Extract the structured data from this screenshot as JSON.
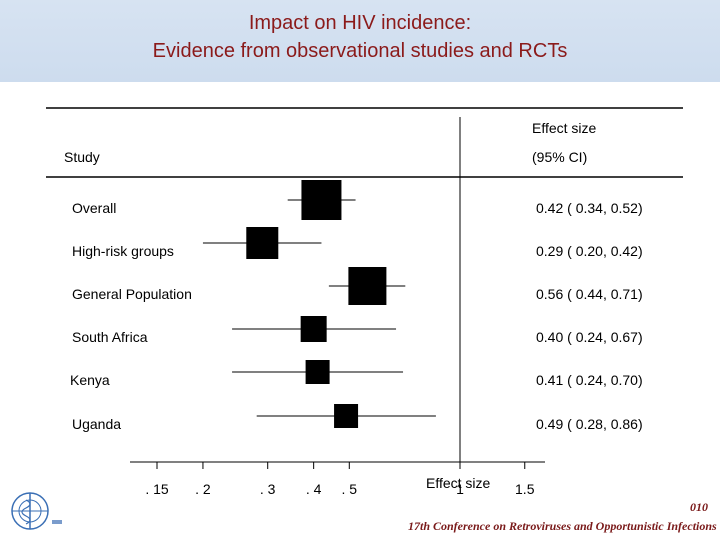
{
  "title": {
    "line1": "Impact on HIV incidence:",
    "line2": "Evidence from observational studies and RCTs"
  },
  "chart_data": {
    "type": "forest",
    "xscale": "log",
    "xlim": [
      0.12,
      1.6
    ],
    "reference_line": 1,
    "header": {
      "study_label": "Study",
      "effect_label_1": "Effect size",
      "effect_label_2": "(95% CI)"
    },
    "xlabel": "Effect size",
    "ticks": [
      {
        "value": 0.15,
        "label": ". 15"
      },
      {
        "value": 0.2,
        "label": ". 2"
      },
      {
        "value": 0.3,
        "label": ". 3"
      },
      {
        "value": 0.4,
        "label": ". 4"
      },
      {
        "value": 0.5,
        "label": ". 5"
      },
      {
        "value": 1,
        "label": "1"
      },
      {
        "value": 1.5,
        "label": "1.5"
      }
    ],
    "rows": [
      {
        "label": "Overall",
        "estimate": 0.42,
        "lower": 0.34,
        "upper": 0.52,
        "text": "0.42 ( 0.34, 0.52)",
        "weight": 1.0
      },
      {
        "label": "High-risk groups",
        "estimate": 0.29,
        "lower": 0.2,
        "upper": 0.42,
        "text": "0.29 ( 0.20, 0.42)",
        "weight": 0.8
      },
      {
        "label": "General Population",
        "estimate": 0.56,
        "lower": 0.44,
        "upper": 0.71,
        "text": "0.56 ( 0.44, 0.71)",
        "weight": 0.95
      },
      {
        "label": "South Africa",
        "estimate": 0.4,
        "lower": 0.24,
        "upper": 0.67,
        "text": "0.40 ( 0.24, 0.67)",
        "weight": 0.65
      },
      {
        "label": "Kenya",
        "estimate": 0.41,
        "lower": 0.24,
        "upper": 0.7,
        "text": "0.41 ( 0.24, 0.70)",
        "weight": 0.6
      },
      {
        "label": "Uganda",
        "estimate": 0.49,
        "lower": 0.28,
        "upper": 0.86,
        "text": "0.49 ( 0.28, 0.86)",
        "weight": 0.6
      }
    ]
  },
  "footer": {
    "slide_number": "010",
    "conference": "17th Conference on Retroviruses and Opportunistic Infections"
  },
  "colors": {
    "title": "#8b1a1a",
    "header_bg": "#cddcee",
    "marker": "#000000"
  }
}
